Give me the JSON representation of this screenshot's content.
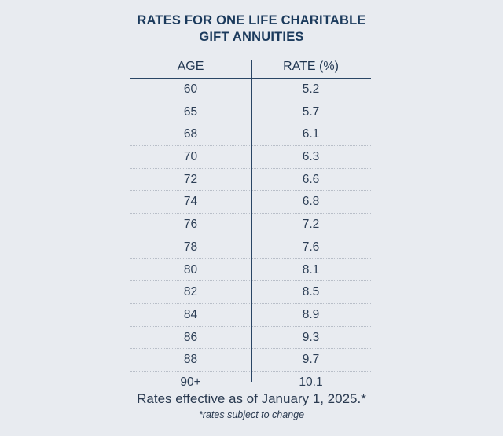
{
  "title_line1": "RATES FOR ONE LIFE CHARITABLE",
  "title_line2": "GIFT ANNUITIES",
  "columns": [
    "AGE",
    "RATE (%)"
  ],
  "rows": [
    [
      "60",
      "5.2"
    ],
    [
      "65",
      "5.7"
    ],
    [
      "68",
      "6.1"
    ],
    [
      "70",
      "6.3"
    ],
    [
      "72",
      "6.6"
    ],
    [
      "74",
      "6.8"
    ],
    [
      "76",
      "7.2"
    ],
    [
      "78",
      "7.6"
    ],
    [
      "80",
      "8.1"
    ],
    [
      "82",
      "8.5"
    ],
    [
      "84",
      "8.9"
    ],
    [
      "86",
      "9.3"
    ],
    [
      "88",
      "9.7"
    ],
    [
      "90+",
      "10.1"
    ]
  ],
  "footer": "Rates effective as of January 1, 2025.*",
  "note": "*rates subject to change"
}
